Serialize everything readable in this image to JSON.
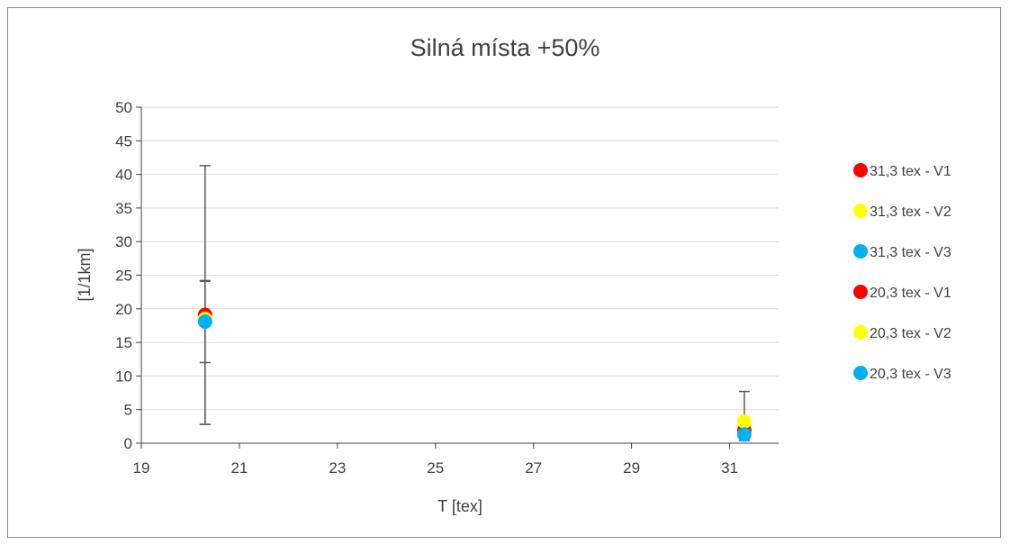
{
  "chart_data": {
    "type": "scatter",
    "title": "Silná místa +50%",
    "xlabel": "T [tex]",
    "ylabel": "[1/1km]",
    "xlim": [
      19,
      32
    ],
    "ylim": [
      0,
      50
    ],
    "x_ticks": [
      19,
      21,
      23,
      25,
      27,
      29,
      31
    ],
    "y_ticks": [
      0,
      5,
      10,
      15,
      20,
      25,
      30,
      35,
      40,
      45,
      50
    ],
    "grid": "horizontal",
    "legend_position": "right",
    "series": [
      {
        "name": "31,3 tex - V1",
        "color": "#ff0000",
        "x": 31.3,
        "y": 1.9,
        "error": [
          0.7,
          1.9
        ]
      },
      {
        "name": "31,3 tex - V2",
        "color": "#ffff00",
        "x": 31.3,
        "y": 3.2,
        "error": [
          1.8,
          4.5
        ]
      },
      {
        "name": "31,3 tex - V3",
        "color": "#00b0f0",
        "x": 31.3,
        "y": 1.3,
        "error": [
          0.9,
          1.1
        ]
      },
      {
        "name": "20,3 tex - V1",
        "color": "#ff0000",
        "x": 20.3,
        "y": 19.1,
        "error": [
          16.3,
          22.2
        ]
      },
      {
        "name": "20,3 tex - V2",
        "color": "#ffff00",
        "x": 20.3,
        "y": 18.5,
        "error": [
          6.5,
          5.7
        ]
      },
      {
        "name": "20,3 tex - V3",
        "color": "#00b0f0",
        "x": 20.3,
        "y": 18.1,
        "error": [
          15.3,
          6.0
        ]
      }
    ]
  }
}
